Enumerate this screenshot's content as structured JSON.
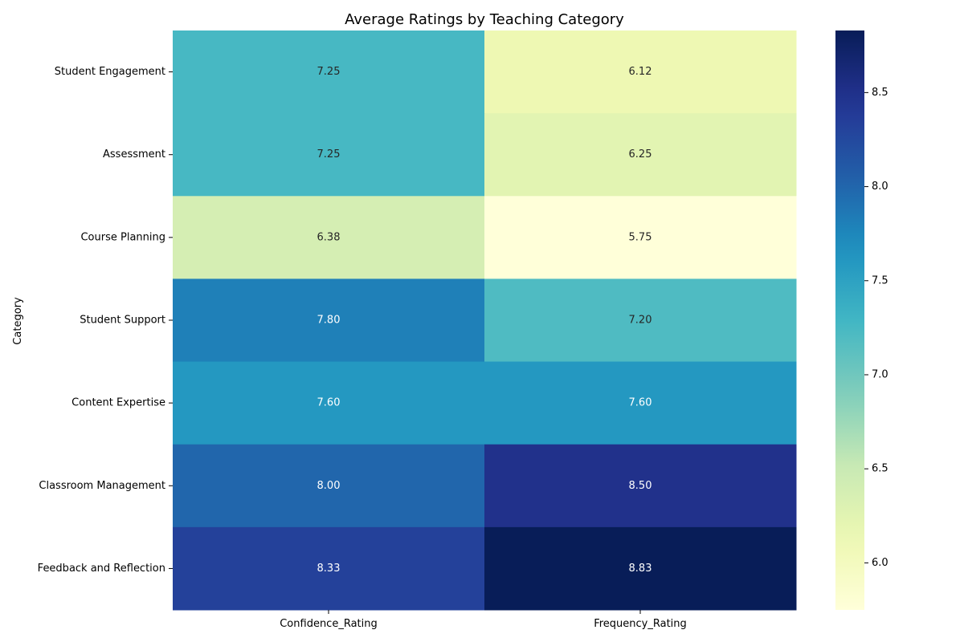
{
  "chart_data": {
    "type": "heatmap",
    "title": "Average Ratings by Teaching Category",
    "ylabel": "Category",
    "xlabel": "",
    "columns": [
      "Confidence_Rating",
      "Frequency_Rating"
    ],
    "rows": [
      "Student Engagement",
      "Assessment",
      "Course Planning",
      "Student Support",
      "Content Expertise",
      "Classroom Management",
      "Feedback and Reflection"
    ],
    "values": [
      [
        7.25,
        6.12
      ],
      [
        7.25,
        6.25
      ],
      [
        6.38,
        5.75
      ],
      [
        7.8,
        7.2
      ],
      [
        7.6,
        7.6
      ],
      [
        8.0,
        8.5
      ],
      [
        8.33,
        8.83
      ]
    ],
    "value_labels": [
      [
        "7.25",
        "6.12"
      ],
      [
        "7.25",
        "6.25"
      ],
      [
        "6.38",
        "5.75"
      ],
      [
        "7.80",
        "7.20"
      ],
      [
        "7.60",
        "7.60"
      ],
      [
        "8.00",
        "8.50"
      ],
      [
        "8.33",
        "8.83"
      ]
    ],
    "colormap": "YlGnBu",
    "colorbar": {
      "min": 5.75,
      "max": 8.83,
      "ticks": [
        6.0,
        6.5,
        7.0,
        7.5,
        8.0,
        8.5
      ],
      "tick_labels": [
        "6.0",
        "6.5",
        "7.0",
        "7.5",
        "8.0",
        "8.5"
      ]
    },
    "grid": false,
    "legend": "colorbar-right"
  }
}
